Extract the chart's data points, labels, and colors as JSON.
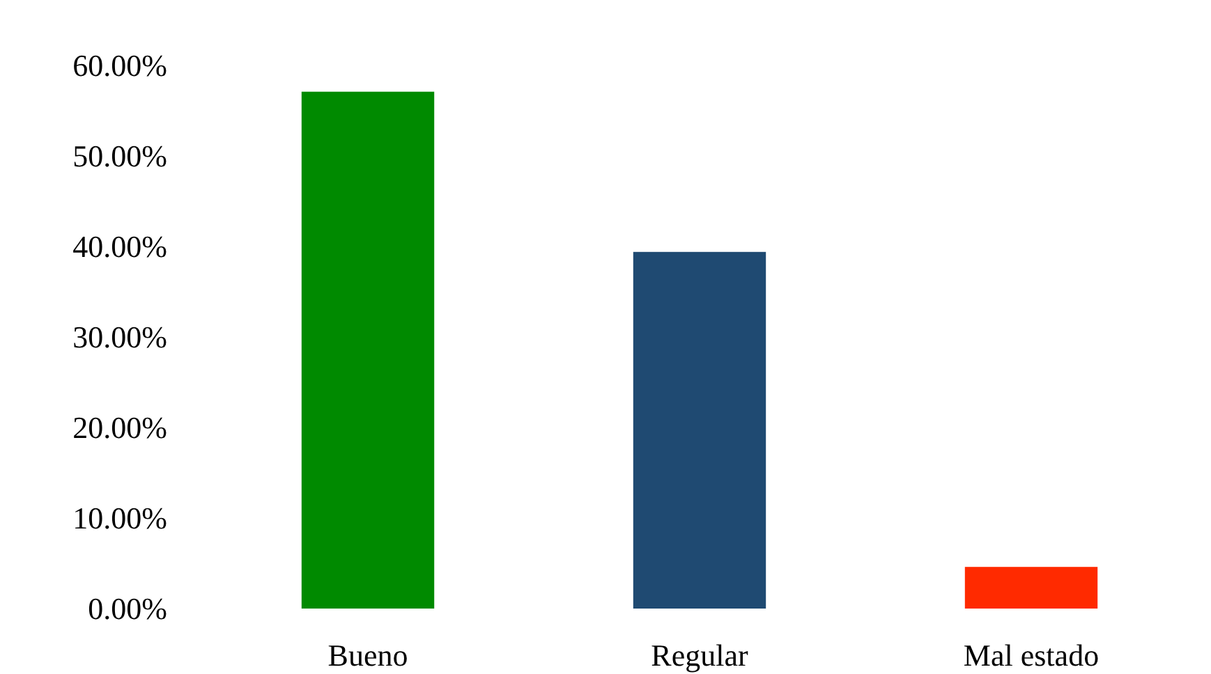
{
  "chart_data": {
    "type": "bar",
    "categories": [
      "Bueno",
      "Regular",
      "Mal estado"
    ],
    "values": [
      57.1,
      39.4,
      4.6
    ],
    "colors": [
      "#008a00",
      "#1f4a72",
      "#ff2a00"
    ],
    "ylim": [
      0,
      60
    ],
    "yticks": [
      {
        "value": 0,
        "label": "0.00%"
      },
      {
        "value": 10,
        "label": "10.00%"
      },
      {
        "value": 20,
        "label": "20.00%"
      },
      {
        "value": 30,
        "label": "30.00%"
      },
      {
        "value": 40,
        "label": "40.00%"
      },
      {
        "value": 50,
        "label": "50.00%"
      },
      {
        "value": 60,
        "label": "60.00%"
      }
    ],
    "grid": false
  }
}
